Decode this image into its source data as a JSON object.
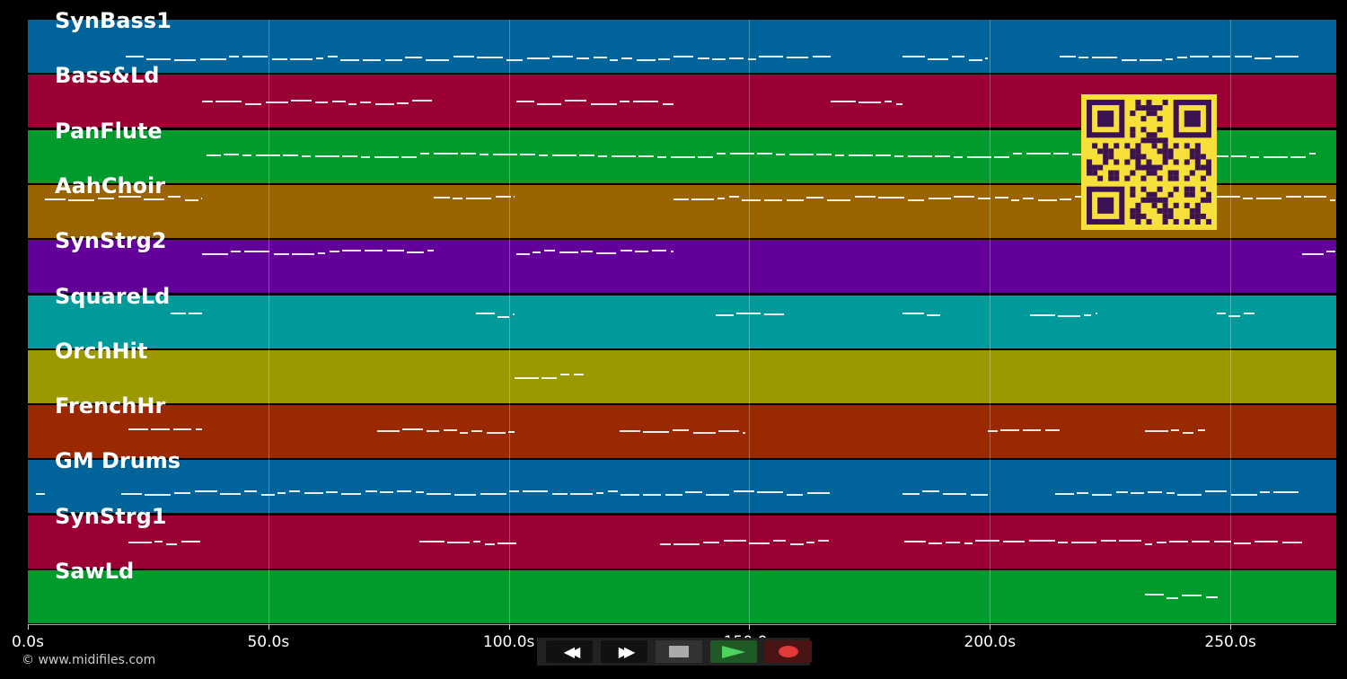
{
  "tracks": [
    {
      "label": "SynBass1",
      "color": "#00649a"
    },
    {
      "label": "Bass&Ld",
      "color": "#9a0034"
    },
    {
      "label": "PanFlute",
      "color": "#009a2d"
    },
    {
      "label": "AahChoir",
      "color": "#9a6400"
    },
    {
      "label": "SynStrg2",
      "color": "#64009a"
    },
    {
      "label": "SquareLd",
      "color": "#009a9a"
    },
    {
      "label": "OrchHit",
      "color": "#9a9a00"
    },
    {
      "label": "FrenchHr",
      "color": "#9a2800"
    },
    {
      "label": "GM Drums",
      "color": "#00649a"
    },
    {
      "label": "SynStrg1",
      "color": "#9a0034"
    },
    {
      "label": "SawLd",
      "color": "#009a2d"
    }
  ],
  "timeline": {
    "ticks": [
      "0.0s",
      "50.0s",
      "100.0s",
      "150.0s",
      "200.0s",
      "250.0s"
    ],
    "tick_values": [
      0,
      50,
      100,
      150,
      200,
      250
    ],
    "max_seconds": 272
  },
  "copyright": "© www.midifiles.com",
  "transport": {
    "rewind": {
      "icon": "rewind-icon",
      "glyph": "◀◀"
    },
    "forward": {
      "icon": "fast-forward-icon",
      "glyph": "▶▶"
    },
    "stop": {
      "icon": "stop-icon"
    },
    "play": {
      "icon": "play-icon"
    },
    "record": {
      "icon": "record-icon"
    }
  },
  "qr": {
    "icon": "qr-code-icon",
    "fg": "#3c1252",
    "bg": "#f7e03a"
  }
}
